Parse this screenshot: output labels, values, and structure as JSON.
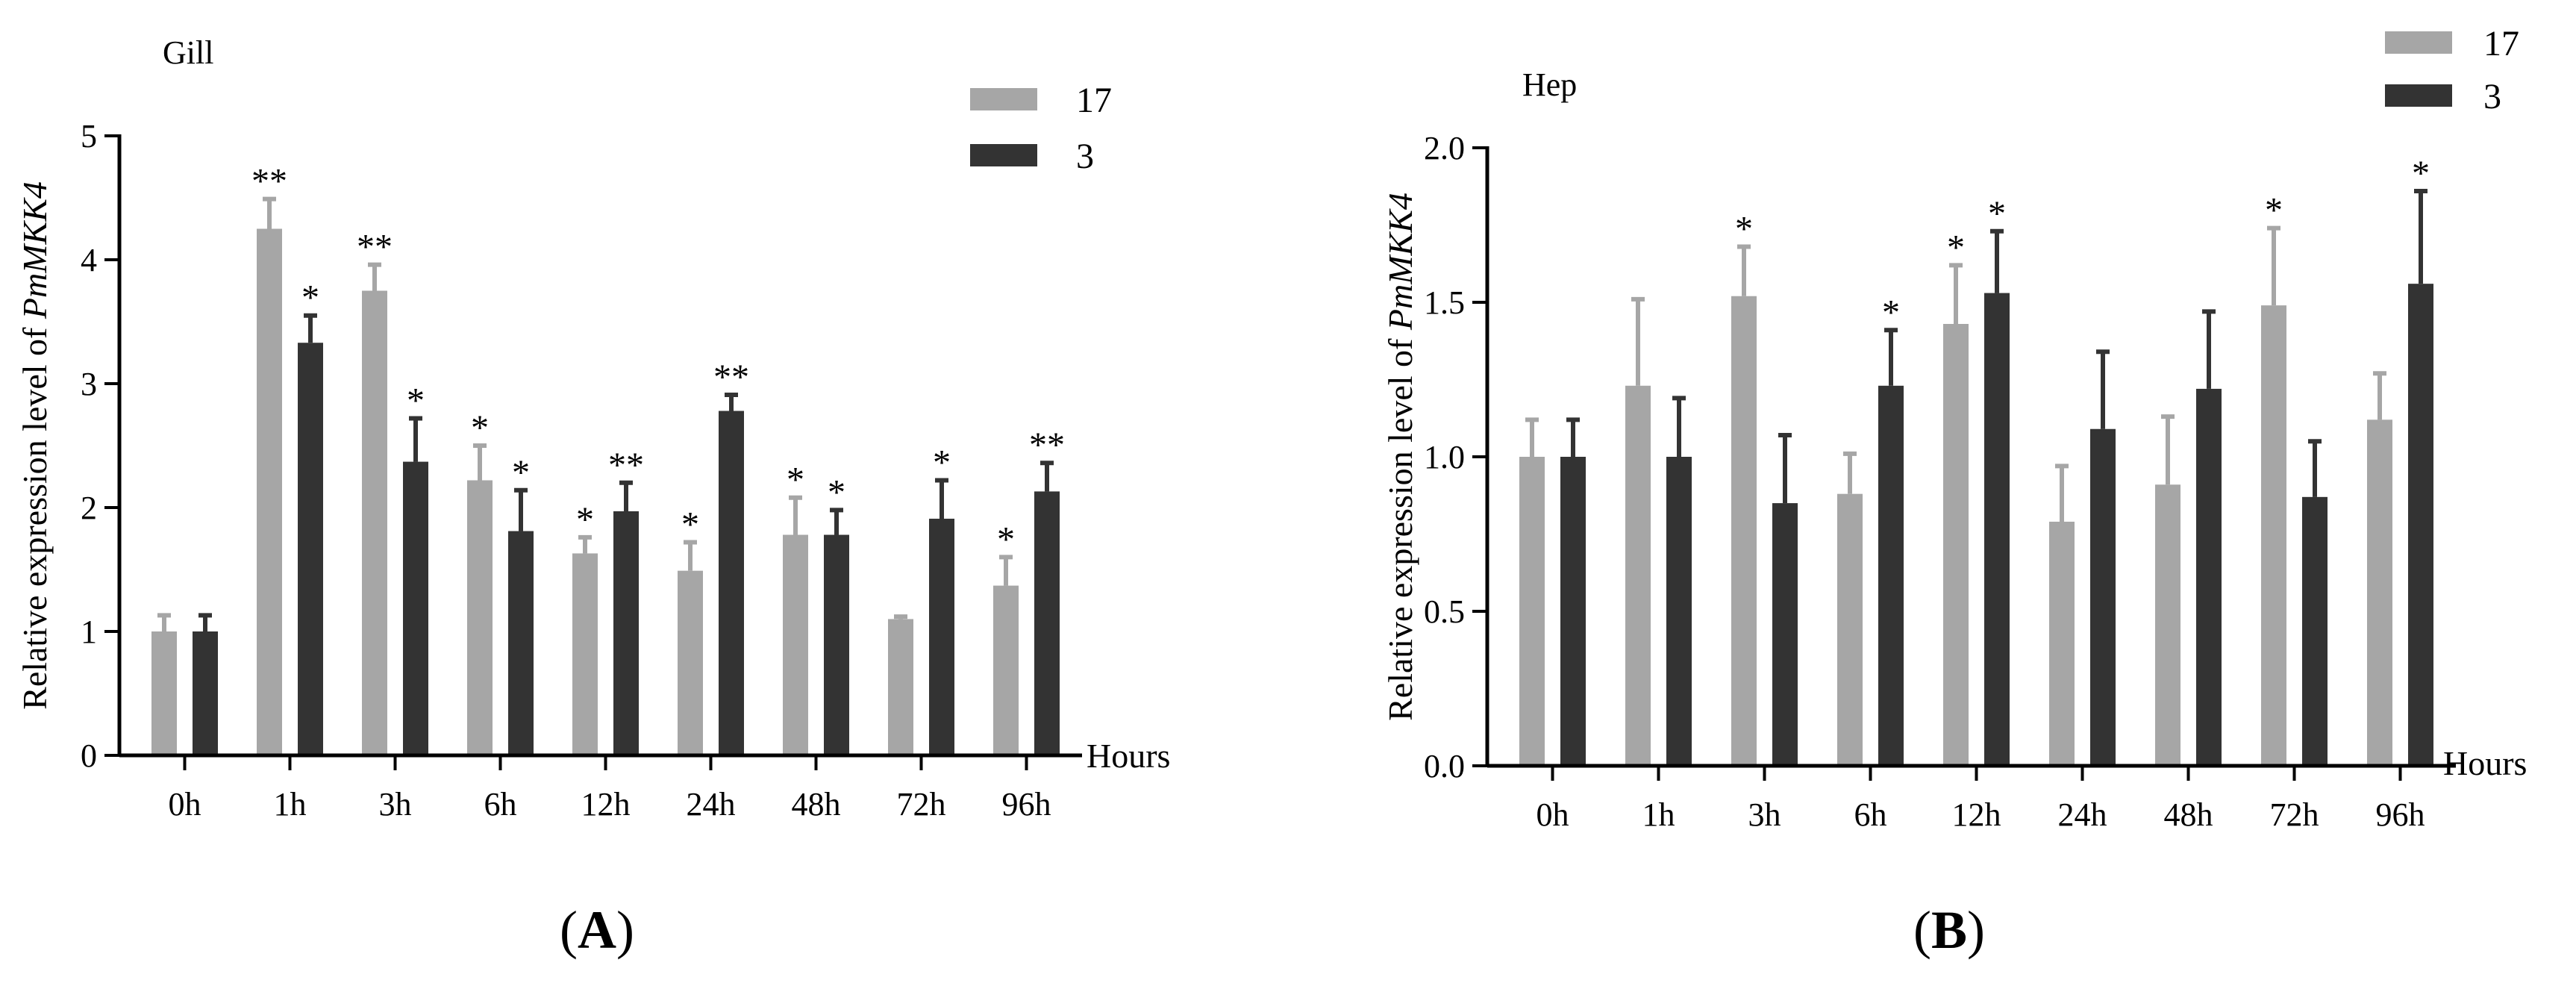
{
  "chart_data": [
    {
      "type": "bar",
      "panel_label": "A",
      "title": "Gill",
      "xlabel": "Hours",
      "ylabel": "Relative expression level of ",
      "ylabel_italic": "PmMKK4",
      "ylim": [
        0,
        5
      ],
      "yticks": [
        "0",
        "1",
        "2",
        "3",
        "4",
        "5"
      ],
      "categories": [
        "0h",
        "1h",
        "3h",
        "6h",
        "12h",
        "24h",
        "48h",
        "72h",
        "96h"
      ],
      "legend": [
        "17",
        "3"
      ],
      "series": [
        {
          "name": "17",
          "color": "#a6a6a6",
          "values": [
            1.0,
            4.25,
            3.75,
            2.22,
            1.63,
            1.49,
            1.78,
            1.1,
            1.37
          ],
          "errors": [
            0.13,
            0.24,
            0.21,
            0.28,
            0.13,
            0.23,
            0.3,
            0.02,
            0.23
          ],
          "significance": [
            "",
            "**",
            "**",
            "*",
            "*",
            "*",
            "*",
            "",
            "*"
          ]
        },
        {
          "name": "3",
          "color": "#333333",
          "values": [
            1.0,
            3.33,
            2.37,
            1.81,
            1.97,
            2.78,
            1.78,
            1.91,
            2.13
          ],
          "errors": [
            0.13,
            0.22,
            0.35,
            0.33,
            0.23,
            0.13,
            0.2,
            0.31,
            0.23
          ],
          "significance": [
            "",
            "*",
            "*",
            "*",
            "**",
            "**",
            "*",
            "*",
            "**"
          ]
        }
      ]
    },
    {
      "type": "bar",
      "panel_label": "B",
      "title": "Hep",
      "xlabel": "Hours",
      "ylabel": "Relative expression level of ",
      "ylabel_italic": "PmMKK4",
      "ylim": [
        0,
        2
      ],
      "yticks": [
        "0.0",
        "0.5",
        "1.0",
        "1.5",
        "2.0"
      ],
      "categories": [
        "0h",
        "1h",
        "3h",
        "6h",
        "12h",
        "24h",
        "48h",
        "72h",
        "96h"
      ],
      "legend": [
        "17",
        "3"
      ],
      "series": [
        {
          "name": "17",
          "color": "#a6a6a6",
          "values": [
            1.0,
            1.23,
            1.52,
            0.88,
            1.43,
            0.79,
            0.91,
            1.49,
            1.12
          ],
          "errors": [
            0.12,
            0.28,
            0.16,
            0.13,
            0.19,
            0.18,
            0.22,
            0.25,
            0.15
          ],
          "significance": [
            "",
            "",
            "*",
            "",
            "*",
            "",
            "",
            "*",
            ""
          ]
        },
        {
          "name": "3",
          "color": "#333333",
          "values": [
            1.0,
            1.0,
            0.85,
            1.23,
            1.53,
            1.09,
            1.22,
            0.87,
            1.56
          ],
          "errors": [
            0.12,
            0.19,
            0.22,
            0.18,
            0.2,
            0.25,
            0.25,
            0.18,
            0.3
          ],
          "significance": [
            "",
            "",
            "",
            "*",
            "*",
            "",
            "",
            "",
            "*"
          ]
        }
      ]
    }
  ]
}
